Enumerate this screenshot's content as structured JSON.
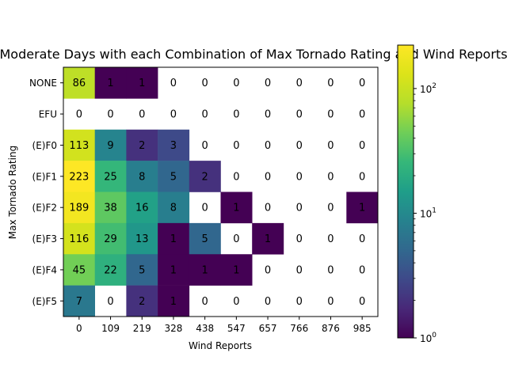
{
  "chart_data": {
    "type": "heatmap",
    "title": "Moderate Days with each Combination of Max Tornado Rating and Wind Reports",
    "xlabel": "Wind Reports",
    "ylabel": "Max Tornado Rating",
    "x_categories": [
      "0",
      "109",
      "219",
      "328",
      "438",
      "547",
      "657",
      "766",
      "876",
      "985"
    ],
    "y_categories": [
      "NONE",
      "EFU",
      "(E)F0",
      "(E)F1",
      "(E)F2",
      "(E)F3",
      "(E)F4",
      "(E)F5"
    ],
    "values": [
      [
        86,
        1,
        1,
        0,
        0,
        0,
        0,
        0,
        0,
        0
      ],
      [
        0,
        0,
        0,
        0,
        0,
        0,
        0,
        0,
        0,
        0
      ],
      [
        113,
        9,
        2,
        3,
        0,
        0,
        0,
        0,
        0,
        0
      ],
      [
        223,
        25,
        8,
        5,
        2,
        0,
        0,
        0,
        0,
        0
      ],
      [
        189,
        38,
        16,
        8,
        0,
        1,
        0,
        0,
        0,
        1
      ],
      [
        116,
        29,
        13,
        1,
        5,
        0,
        1,
        0,
        0,
        0
      ],
      [
        45,
        22,
        5,
        1,
        1,
        1,
        0,
        0,
        0,
        0
      ],
      [
        7,
        0,
        2,
        1,
        0,
        0,
        0,
        0,
        0,
        0
      ]
    ],
    "color_scale": "log",
    "colormap": "viridis",
    "vmin": 1,
    "vmax": 223,
    "zero_cells": "blank",
    "colorbar": {
      "ticks": [
        {
          "base": "10",
          "exp": "0",
          "value": 1
        },
        {
          "base": "10",
          "exp": "1",
          "value": 10
        },
        {
          "base": "10",
          "exp": "2",
          "value": 100
        }
      ]
    },
    "grid": false
  }
}
